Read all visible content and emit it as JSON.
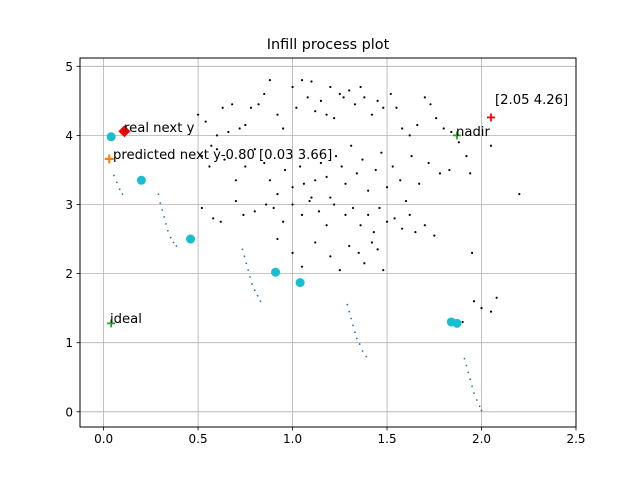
{
  "chart_data": {
    "type": "scatter",
    "title": "Infill process plot",
    "xlabel": "",
    "ylabel": "",
    "xlim": [
      -0.125,
      2.5
    ],
    "ylim": [
      -0.22,
      5.12
    ],
    "xticks": [
      0.0,
      0.5,
      1.0,
      1.5,
      2.0,
      2.5
    ],
    "xtick_labels": [
      "0.0",
      "0.5",
      "1.0",
      "1.5",
      "2.0",
      "2.5"
    ],
    "yticks": [
      0,
      1,
      2,
      3,
      4,
      5
    ],
    "ytick_labels": [
      "0",
      "1",
      "2",
      "3",
      "4",
      "5"
    ],
    "grid": true,
    "colors": {
      "population": "#000000",
      "front": "#1f77b4",
      "training": "#17becf",
      "ideal_nadir": "#2ca02c",
      "predicted": "#ff7f0e",
      "real": "#ff0000",
      "marked": "#ff0000"
    },
    "population": [
      [
        0.5,
        4.3
      ],
      [
        0.54,
        4.2
      ],
      [
        0.57,
        3.85
      ],
      [
        0.6,
        4.0
      ],
      [
        0.63,
        4.4
      ],
      [
        0.66,
        4.05
      ],
      [
        0.68,
        4.45
      ],
      [
        0.72,
        4.1
      ],
      [
        0.75,
        4.15
      ],
      [
        0.78,
        4.4
      ],
      [
        0.82,
        4.45
      ],
      [
        0.85,
        4.6
      ],
      [
        0.88,
        4.8
      ],
      [
        0.92,
        4.3
      ],
      [
        0.95,
        4.1
      ],
      [
        1.0,
        4.7
      ],
      [
        1.02,
        4.4
      ],
      [
        1.05,
        4.8
      ],
      [
        1.08,
        4.55
      ],
      [
        1.1,
        4.78
      ],
      [
        1.12,
        4.35
      ],
      [
        1.15,
        4.5
      ],
      [
        1.18,
        4.3
      ],
      [
        1.2,
        4.7
      ],
      [
        1.22,
        4.25
      ],
      [
        1.25,
        4.6
      ],
      [
        1.27,
        4.55
      ],
      [
        1.3,
        4.65
      ],
      [
        1.33,
        4.45
      ],
      [
        1.36,
        4.7
      ],
      [
        1.38,
        4.55
      ],
      [
        1.42,
        4.3
      ],
      [
        1.45,
        4.5
      ],
      [
        1.48,
        4.4
      ],
      [
        1.52,
        4.6
      ],
      [
        1.55,
        4.4
      ],
      [
        1.58,
        4.1
      ],
      [
        1.62,
        4.0
      ],
      [
        1.66,
        4.15
      ],
      [
        1.7,
        4.55
      ],
      [
        1.73,
        4.45
      ],
      [
        1.76,
        4.25
      ],
      [
        1.8,
        4.1
      ],
      [
        1.84,
        4.05
      ],
      [
        0.52,
        3.7
      ],
      [
        0.56,
        3.55
      ],
      [
        0.6,
        3.8
      ],
      [
        0.64,
        3.65
      ],
      [
        0.7,
        3.35
      ],
      [
        0.75,
        3.55
      ],
      [
        0.8,
        3.8
      ],
      [
        0.85,
        3.6
      ],
      [
        0.88,
        3.35
      ],
      [
        0.92,
        3.15
      ],
      [
        0.96,
        3.5
      ],
      [
        1.0,
        3.25
      ],
      [
        1.04,
        3.55
      ],
      [
        1.06,
        3.3
      ],
      [
        1.09,
        3.05
      ],
      [
        1.12,
        3.35
      ],
      [
        1.15,
        3.6
      ],
      [
        1.18,
        3.4
      ],
      [
        1.2,
        3.1
      ],
      [
        1.23,
        3.7
      ],
      [
        1.26,
        3.55
      ],
      [
        1.28,
        3.3
      ],
      [
        1.31,
        3.85
      ],
      [
        1.34,
        3.45
      ],
      [
        1.37,
        3.65
      ],
      [
        1.4,
        3.2
      ],
      [
        1.44,
        3.5
      ],
      [
        1.47,
        3.75
      ],
      [
        1.5,
        3.25
      ],
      [
        1.53,
        3.55
      ],
      [
        1.57,
        3.35
      ],
      [
        1.6,
        3.05
      ],
      [
        1.63,
        3.7
      ],
      [
        1.67,
        3.3
      ],
      [
        1.72,
        3.6
      ],
      [
        1.78,
        3.45
      ],
      [
        1.83,
        3.5
      ],
      [
        1.88,
        3.9
      ],
      [
        1.92,
        3.7
      ],
      [
        1.94,
        3.45
      ],
      [
        0.52,
        2.95
      ],
      [
        0.58,
        2.8
      ],
      [
        0.62,
        2.75
      ],
      [
        0.7,
        3.05
      ],
      [
        0.74,
        2.85
      ],
      [
        0.8,
        2.9
      ],
      [
        0.86,
        3.0
      ],
      [
        0.9,
        2.95
      ],
      [
        0.95,
        2.75
      ],
      [
        1.0,
        3.0
      ],
      [
        1.05,
        2.85
      ],
      [
        1.1,
        3.1
      ],
      [
        1.14,
        2.9
      ],
      [
        1.18,
        2.7
      ],
      [
        1.22,
        3.0
      ],
      [
        1.28,
        2.85
      ],
      [
        1.32,
        2.95
      ],
      [
        1.36,
        2.7
      ],
      [
        1.4,
        2.85
      ],
      [
        1.43,
        2.6
      ],
      [
        1.46,
        2.95
      ],
      [
        1.5,
        2.75
      ],
      [
        1.54,
        2.8
      ],
      [
        1.58,
        2.65
      ],
      [
        1.62,
        2.85
      ],
      [
        1.65,
        2.6
      ],
      [
        1.7,
        2.7
      ],
      [
        1.75,
        2.55
      ],
      [
        0.92,
        2.5
      ],
      [
        1.0,
        2.3
      ],
      [
        1.05,
        2.1
      ],
      [
        1.12,
        2.45
      ],
      [
        1.2,
        2.25
      ],
      [
        1.25,
        2.05
      ],
      [
        1.3,
        2.4
      ],
      [
        1.35,
        2.3
      ],
      [
        1.38,
        2.15
      ],
      [
        1.42,
        2.45
      ],
      [
        1.45,
        2.35
      ],
      [
        1.48,
        2.05
      ],
      [
        2.05,
        3.85
      ],
      [
        2.2,
        3.15
      ],
      [
        1.95,
        2.3
      ],
      [
        1.96,
        1.6
      ],
      [
        2.0,
        1.5
      ],
      [
        2.05,
        1.45
      ],
      [
        2.08,
        1.65
      ],
      [
        1.9,
        1.3
      ]
    ],
    "pareto_front": [
      [
        0.055,
        3.42
      ],
      [
        0.07,
        3.32
      ],
      [
        0.085,
        3.22
      ],
      [
        0.1,
        3.15
      ],
      [
        0.29,
        3.15
      ],
      [
        0.3,
        3.02
      ],
      [
        0.31,
        2.92
      ],
      [
        0.32,
        2.82
      ],
      [
        0.33,
        2.72
      ],
      [
        0.34,
        2.62
      ],
      [
        0.355,
        2.52
      ],
      [
        0.37,
        2.45
      ],
      [
        0.385,
        2.4
      ],
      [
        0.735,
        2.35
      ],
      [
        0.745,
        2.25
      ],
      [
        0.755,
        2.15
      ],
      [
        0.765,
        2.05
      ],
      [
        0.775,
        1.95
      ],
      [
        0.785,
        1.85
      ],
      [
        0.8,
        1.76
      ],
      [
        0.815,
        1.68
      ],
      [
        0.83,
        1.6
      ],
      [
        1.29,
        1.55
      ],
      [
        1.3,
        1.45
      ],
      [
        1.31,
        1.35
      ],
      [
        1.32,
        1.25
      ],
      [
        1.33,
        1.15
      ],
      [
        1.34,
        1.06
      ],
      [
        1.355,
        0.98
      ],
      [
        1.37,
        0.88
      ],
      [
        1.39,
        0.8
      ],
      [
        1.91,
        0.77
      ],
      [
        1.92,
        0.67
      ],
      [
        1.93,
        0.57
      ],
      [
        1.94,
        0.47
      ],
      [
        1.95,
        0.37
      ],
      [
        1.96,
        0.27
      ],
      [
        1.975,
        0.17
      ],
      [
        1.99,
        0.08
      ],
      [
        2.0,
        0.02
      ]
    ],
    "training_points": [
      [
        0.04,
        3.98
      ],
      [
        0.2,
        3.35
      ],
      [
        0.46,
        2.5
      ],
      [
        0.91,
        2.02
      ],
      [
        1.04,
        1.87
      ],
      [
        1.84,
        1.3
      ],
      [
        1.87,
        1.28
      ]
    ],
    "ideal": [
      0.04,
      1.28
    ],
    "nadir": [
      1.87,
      4.0
    ],
    "predicted_next": [
      0.03,
      3.66
    ],
    "real_next": [
      0.11,
      4.06
    ],
    "marked_point": [
      2.05,
      4.26
    ],
    "annotations": {
      "ideal": "ideal",
      "nadir": "nadir",
      "real_next": "real next y",
      "predicted_next": "predicted next y-0.80 [0.03 3.66]",
      "marked_point": "[2.05 4.26]"
    }
  }
}
